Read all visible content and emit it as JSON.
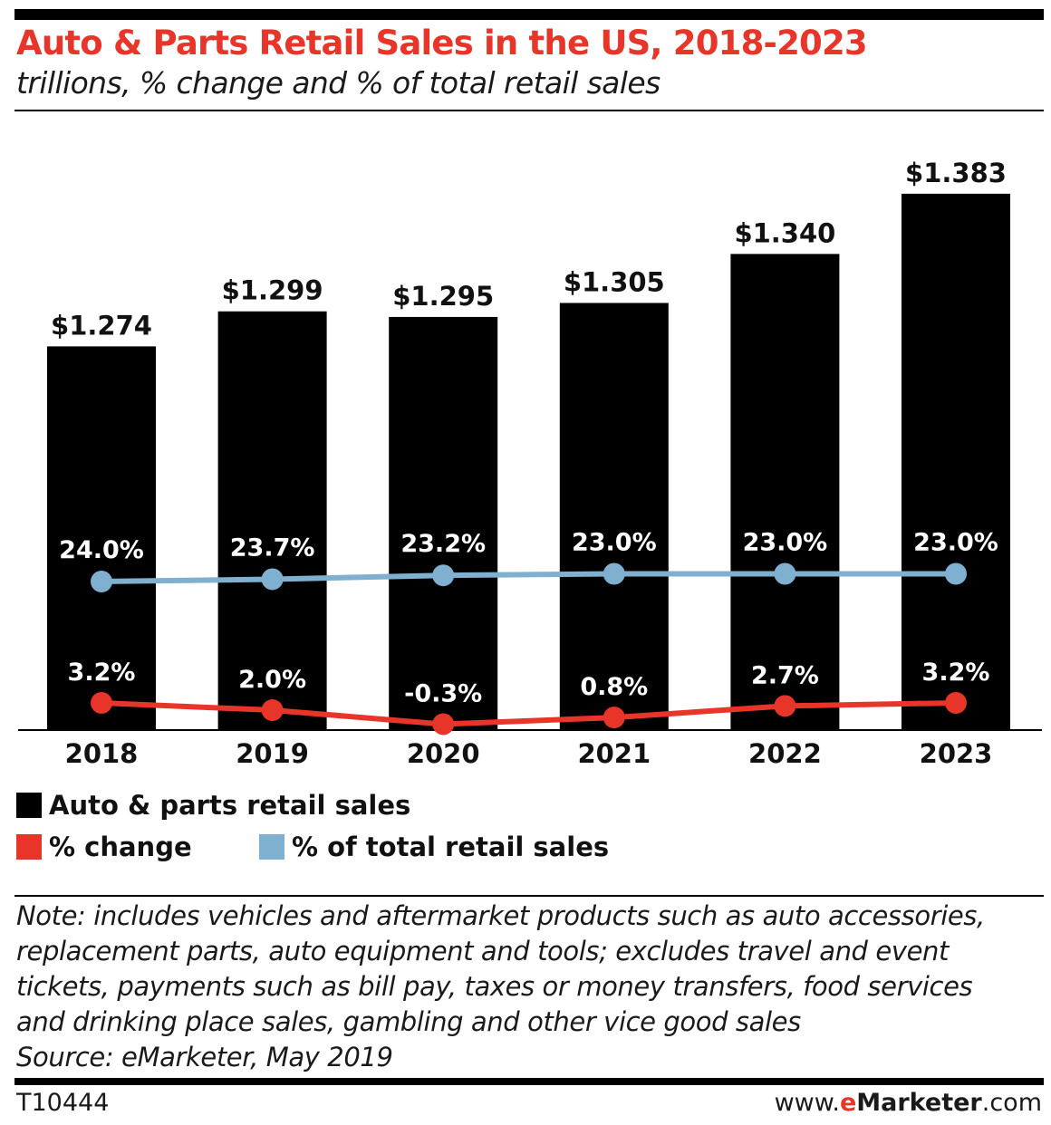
{
  "header": {
    "title": "Auto & Parts Retail Sales in the US, 2018-2023",
    "subtitle": "trillions, % change and % of total retail sales"
  },
  "colors": {
    "bar": "#000000",
    "change_line": "#e8352a",
    "share_line": "#7fb0d0",
    "title": "#e8352a"
  },
  "chart_data": {
    "type": "bar",
    "categories": [
      "2018",
      "2019",
      "2020",
      "2021",
      "2022",
      "2023"
    ],
    "series": [
      {
        "name": "Auto & parts retail sales",
        "type": "bar",
        "values": [
          1.274,
          1.299,
          1.295,
          1.305,
          1.34,
          1.383
        ],
        "labels": [
          "$1.274",
          "$1.299",
          "$1.295",
          "$1.305",
          "$1.340",
          "$1.383"
        ]
      },
      {
        "name": "% of total retail sales",
        "type": "line",
        "values": [
          24.0,
          23.7,
          23.2,
          23.0,
          23.0,
          23.0
        ],
        "labels": [
          "24.0%",
          "23.7%",
          "23.2%",
          "23.0%",
          "23.0%",
          "23.0%"
        ]
      },
      {
        "name": "% change",
        "type": "line",
        "values": [
          3.2,
          2.0,
          -0.3,
          0.8,
          2.7,
          3.2
        ],
        "labels": [
          "3.2%",
          "2.0%",
          "-0.3%",
          "0.8%",
          "2.7%",
          "3.2%"
        ]
      }
    ],
    "legend_position": "bottom",
    "grid": false
  },
  "legend": {
    "bars": "Auto & parts retail sales",
    "change": "% change",
    "share": "% of total retail sales"
  },
  "note": {
    "lines": [
      "Note: includes vehicles and aftermarket products such as auto accessories,",
      "replacement parts, auto equipment and tools; excludes travel and event",
      "tickets, payments such as bill pay, taxes or money transfers, food services",
      "and drinking place sales, gambling and other vice good sales",
      "Source: eMarketer, May 2019"
    ]
  },
  "footer": {
    "chart_id": "T10444",
    "brand_prefix": "www.",
    "brand_e": "e",
    "brand_main": "Marketer",
    "brand_suffix": ".com"
  }
}
